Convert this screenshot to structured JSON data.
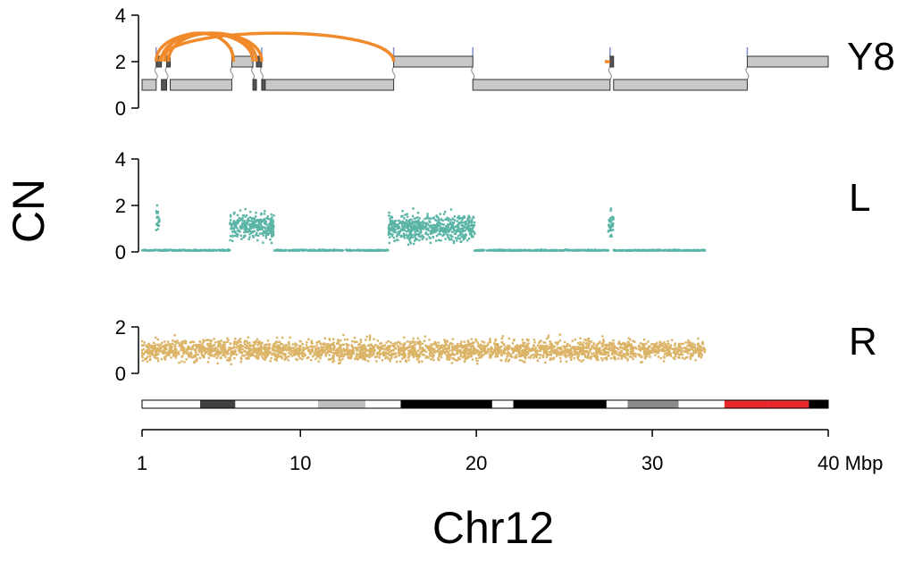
{
  "chart_data": {
    "type": "scatter",
    "chromosome": "Chr12",
    "xlabel": "Chr12",
    "ylabel": "CN",
    "x_unit": "Mbp",
    "xlim": [
      1,
      40
    ],
    "x_ticks": [
      1,
      10,
      20,
      30,
      40
    ],
    "x_tick_labels": [
      "1",
      "10",
      "20",
      "30",
      "40 Mbp"
    ],
    "panels": [
      {
        "label": "Y8",
        "kind": "segments",
        "ylim": [
          0,
          4
        ],
        "y_ticks": [
          0,
          2,
          4
        ],
        "segments": [
          {
            "start": 1.0,
            "end": 1.8,
            "cn": 1
          },
          {
            "start": 1.8,
            "end": 2.1,
            "cn": 2
          },
          {
            "start": 2.1,
            "end": 2.4,
            "cn": 1
          },
          {
            "start": 2.4,
            "end": 2.6,
            "cn": 2
          },
          {
            "start": 2.6,
            "end": 6.1,
            "cn": 1
          },
          {
            "start": 6.1,
            "end": 7.3,
            "cn": 2
          },
          {
            "start": 7.3,
            "end": 7.5,
            "cn": 1
          },
          {
            "start": 7.5,
            "end": 7.8,
            "cn": 2
          },
          {
            "start": 7.8,
            "end": 8.0,
            "cn": 1
          },
          {
            "start": 8.0,
            "end": 15.3,
            "cn": 1
          },
          {
            "start": 15.3,
            "end": 19.8,
            "cn": 2
          },
          {
            "start": 19.8,
            "end": 27.6,
            "cn": 1
          },
          {
            "start": 27.6,
            "end": 27.8,
            "cn": 2
          },
          {
            "start": 27.8,
            "end": 35.4,
            "cn": 1
          },
          {
            "start": 35.4,
            "end": 40.0,
            "cn": 2
          }
        ],
        "breakpoints": [
          1.8,
          2.4,
          6.1,
          7.3,
          7.8,
          15.3,
          19.8,
          27.6,
          35.4
        ],
        "links": [
          {
            "from": 2.0,
            "to": 15.3
          },
          {
            "from": 2.1,
            "to": 7.8
          },
          {
            "from": 2.5,
            "to": 7.5
          },
          {
            "from": 1.8,
            "to": 7.3
          },
          {
            "from": 2.3,
            "to": 6.2
          }
        ],
        "color": "#c8c8c8",
        "link_color": "#f08a2a"
      },
      {
        "label": "L",
        "kind": "points",
        "ylim": [
          0,
          4
        ],
        "y_ticks": [
          0,
          2,
          4
        ],
        "color": "#5bb5a7",
        "regions": [
          {
            "start": 1.0,
            "end": 6.0,
            "cn": 0.05
          },
          {
            "start": 1.8,
            "end": 2.0,
            "cn": 1.4
          },
          {
            "start": 6.0,
            "end": 8.5,
            "cn": 1.1
          },
          {
            "start": 8.5,
            "end": 15.0,
            "cn": 0.05
          },
          {
            "start": 15.0,
            "end": 19.9,
            "cn": 1.05
          },
          {
            "start": 19.9,
            "end": 27.5,
            "cn": 0.05
          },
          {
            "start": 27.5,
            "end": 27.8,
            "cn": 1.3
          },
          {
            "start": 27.8,
            "end": 33.0,
            "cn": 0.05
          }
        ]
      },
      {
        "label": "R",
        "kind": "points",
        "ylim": [
          0,
          2
        ],
        "y_ticks": [
          0,
          2
        ],
        "color": "#dbb467",
        "regions": [
          {
            "start": 1.0,
            "end": 33.0,
            "cn": 1.0
          }
        ]
      }
    ],
    "ideogram": [
      {
        "start": 1.0,
        "end": 4.3,
        "color": "#ffffff"
      },
      {
        "start": 4.3,
        "end": 6.3,
        "color": "#404040"
      },
      {
        "start": 6.3,
        "end": 11.0,
        "color": "#ffffff"
      },
      {
        "start": 11.0,
        "end": 13.7,
        "color": "#c0c0c0"
      },
      {
        "start": 13.7,
        "end": 15.7,
        "color": "#ffffff"
      },
      {
        "start": 15.7,
        "end": 20.9,
        "color": "#000000"
      },
      {
        "start": 20.9,
        "end": 22.1,
        "color": "#ffffff"
      },
      {
        "start": 22.1,
        "end": 27.4,
        "color": "#000000"
      },
      {
        "start": 27.4,
        "end": 28.6,
        "color": "#ffffff"
      },
      {
        "start": 28.6,
        "end": 31.5,
        "color": "#8a8a8a"
      },
      {
        "start": 31.5,
        "end": 34.1,
        "color": "#ffffff"
      },
      {
        "start": 34.1,
        "end": 36.6,
        "color": "#e8262b"
      },
      {
        "start": 36.6,
        "end": 38.9,
        "color": "#e8262b"
      },
      {
        "start": 38.9,
        "end": 40.0,
        "color": "#000000"
      }
    ]
  }
}
